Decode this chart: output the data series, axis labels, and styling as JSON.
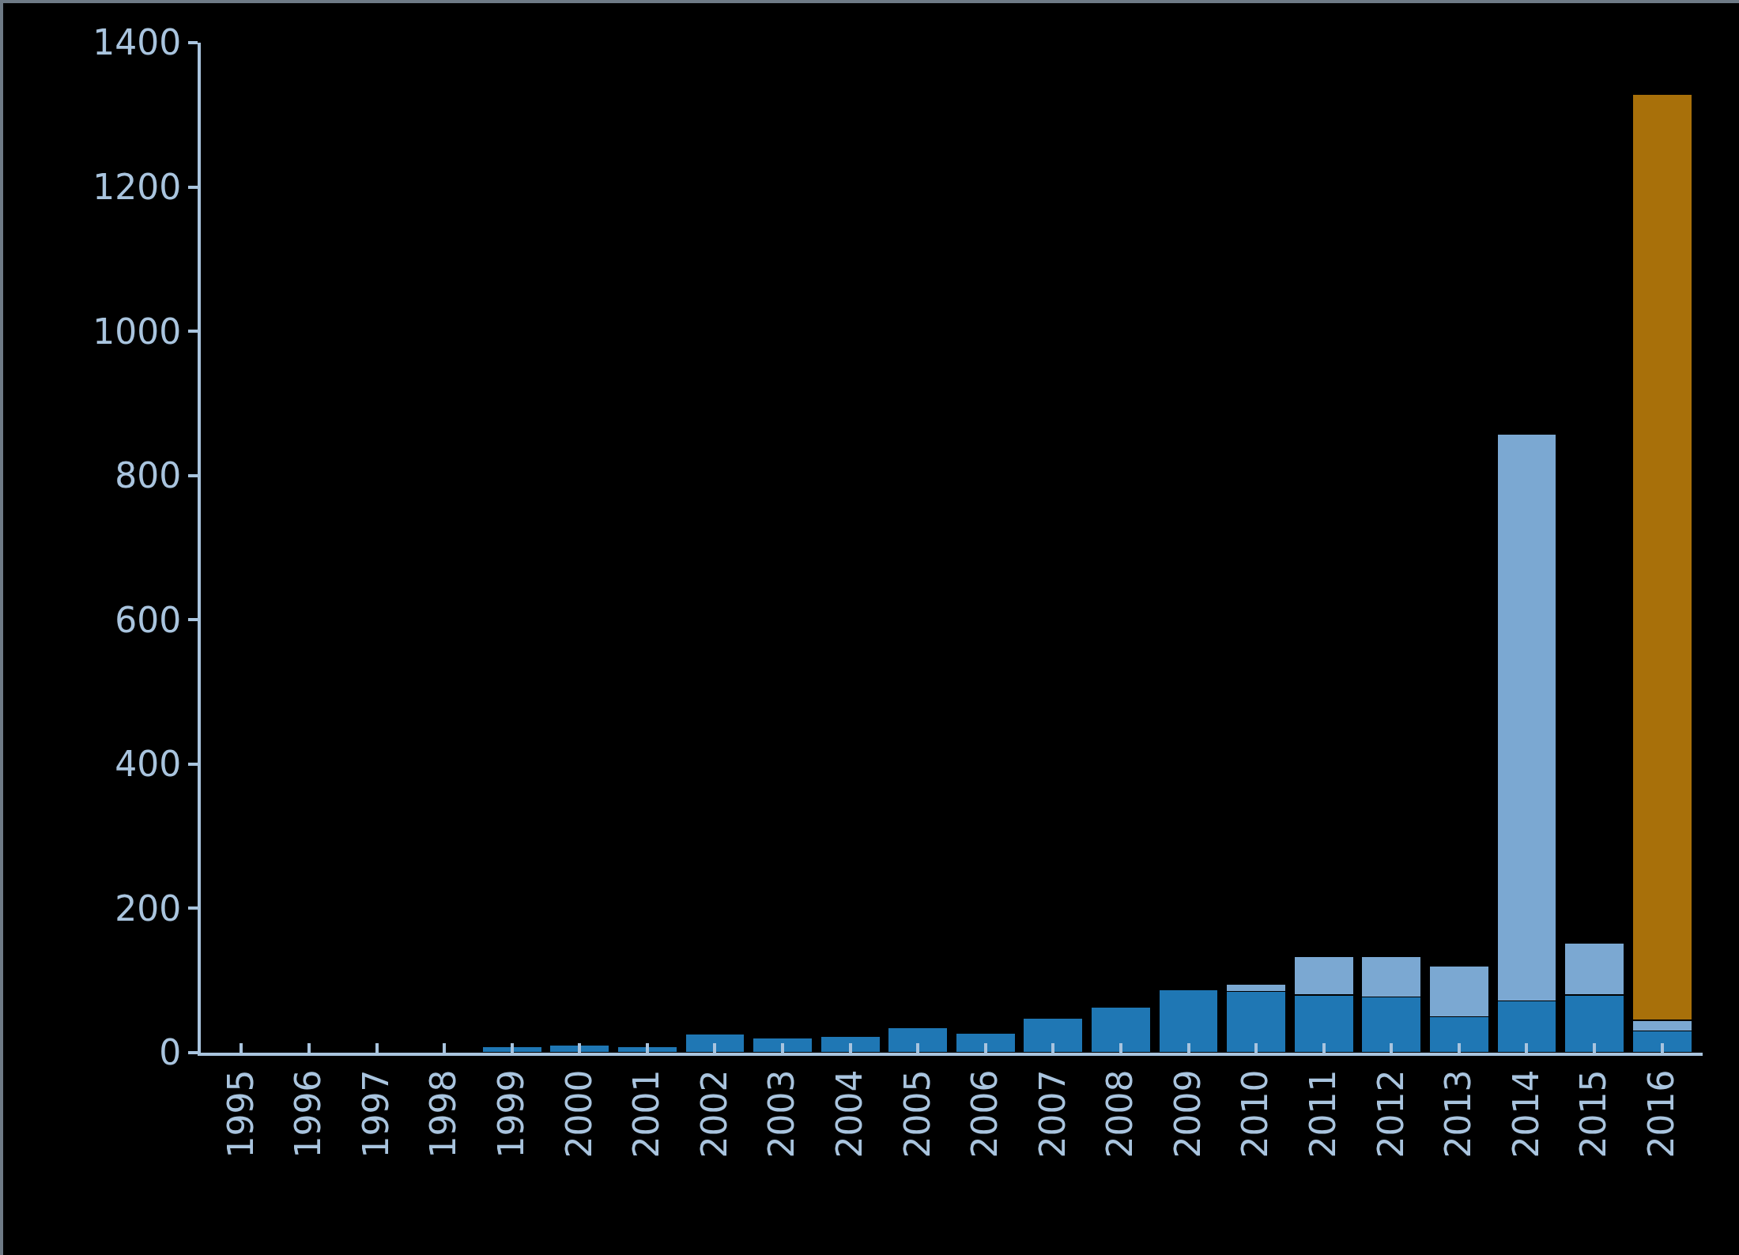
{
  "chart_data": {
    "type": "bar",
    "stacked": true,
    "categories": [
      "1995",
      "1996",
      "1997",
      "1998",
      "1999",
      "2000",
      "2001",
      "2002",
      "2003",
      "2004",
      "2005",
      "2006",
      "2007",
      "2008",
      "2009",
      "2010",
      "2011",
      "2012",
      "2013",
      "2014",
      "2015",
      "2016"
    ],
    "series": [
      {
        "color": "#1f77b4",
        "values": [
          null,
          null,
          null,
          null,
          8,
          11,
          8,
          26,
          20,
          23,
          35,
          27,
          48,
          63,
          87,
          85,
          80,
          77,
          50,
          72,
          80,
          30
        ]
      },
      {
        "color": "#7ba8d2",
        "values": [
          null,
          null,
          null,
          null,
          null,
          null,
          null,
          null,
          null,
          null,
          null,
          null,
          null,
          null,
          null,
          10,
          53,
          56,
          70,
          786,
          72,
          15
        ]
      },
      {
        "color": "#a8700a",
        "values": [
          null,
          null,
          null,
          null,
          null,
          null,
          null,
          null,
          null,
          null,
          null,
          null,
          null,
          null,
          null,
          null,
          null,
          null,
          null,
          null,
          null,
          1283
        ]
      }
    ],
    "ylim": [
      0,
      1400
    ],
    "yticks": [
      0,
      200,
      400,
      600,
      800,
      1000,
      1200,
      1400
    ],
    "grid": false
  }
}
